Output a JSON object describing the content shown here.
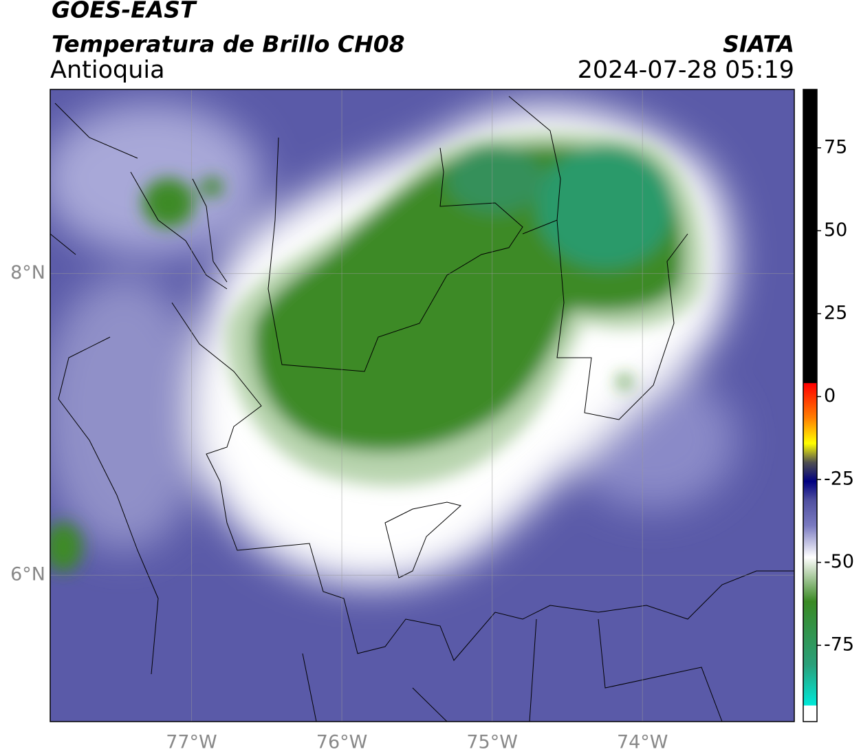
{
  "header": {
    "satellite": "GOES-EAST",
    "product": "Temperatura de Brillo CH08",
    "region": "Antioquia",
    "agency": "SIATA",
    "datetime": "2024-07-28 05:19"
  },
  "map": {
    "lonlim": [
      -77.94,
      -72.99
    ],
    "latlim": [
      5.03,
      9.22
    ],
    "lon_ticks": [
      {
        "value": -77,
        "label": "77°W"
      },
      {
        "value": -76,
        "label": "76°W"
      },
      {
        "value": -75,
        "label": "75°W"
      },
      {
        "value": -74,
        "label": "74°W"
      }
    ],
    "lat_ticks": [
      {
        "value": 8,
        "label": "8°N"
      },
      {
        "value": 6,
        "label": "6°N"
      }
    ]
  },
  "colorbar": {
    "lim": [
      -98,
      92.6
    ],
    "ticks": [
      75,
      50,
      25,
      0,
      -25,
      -50,
      -75
    ]
  }
}
